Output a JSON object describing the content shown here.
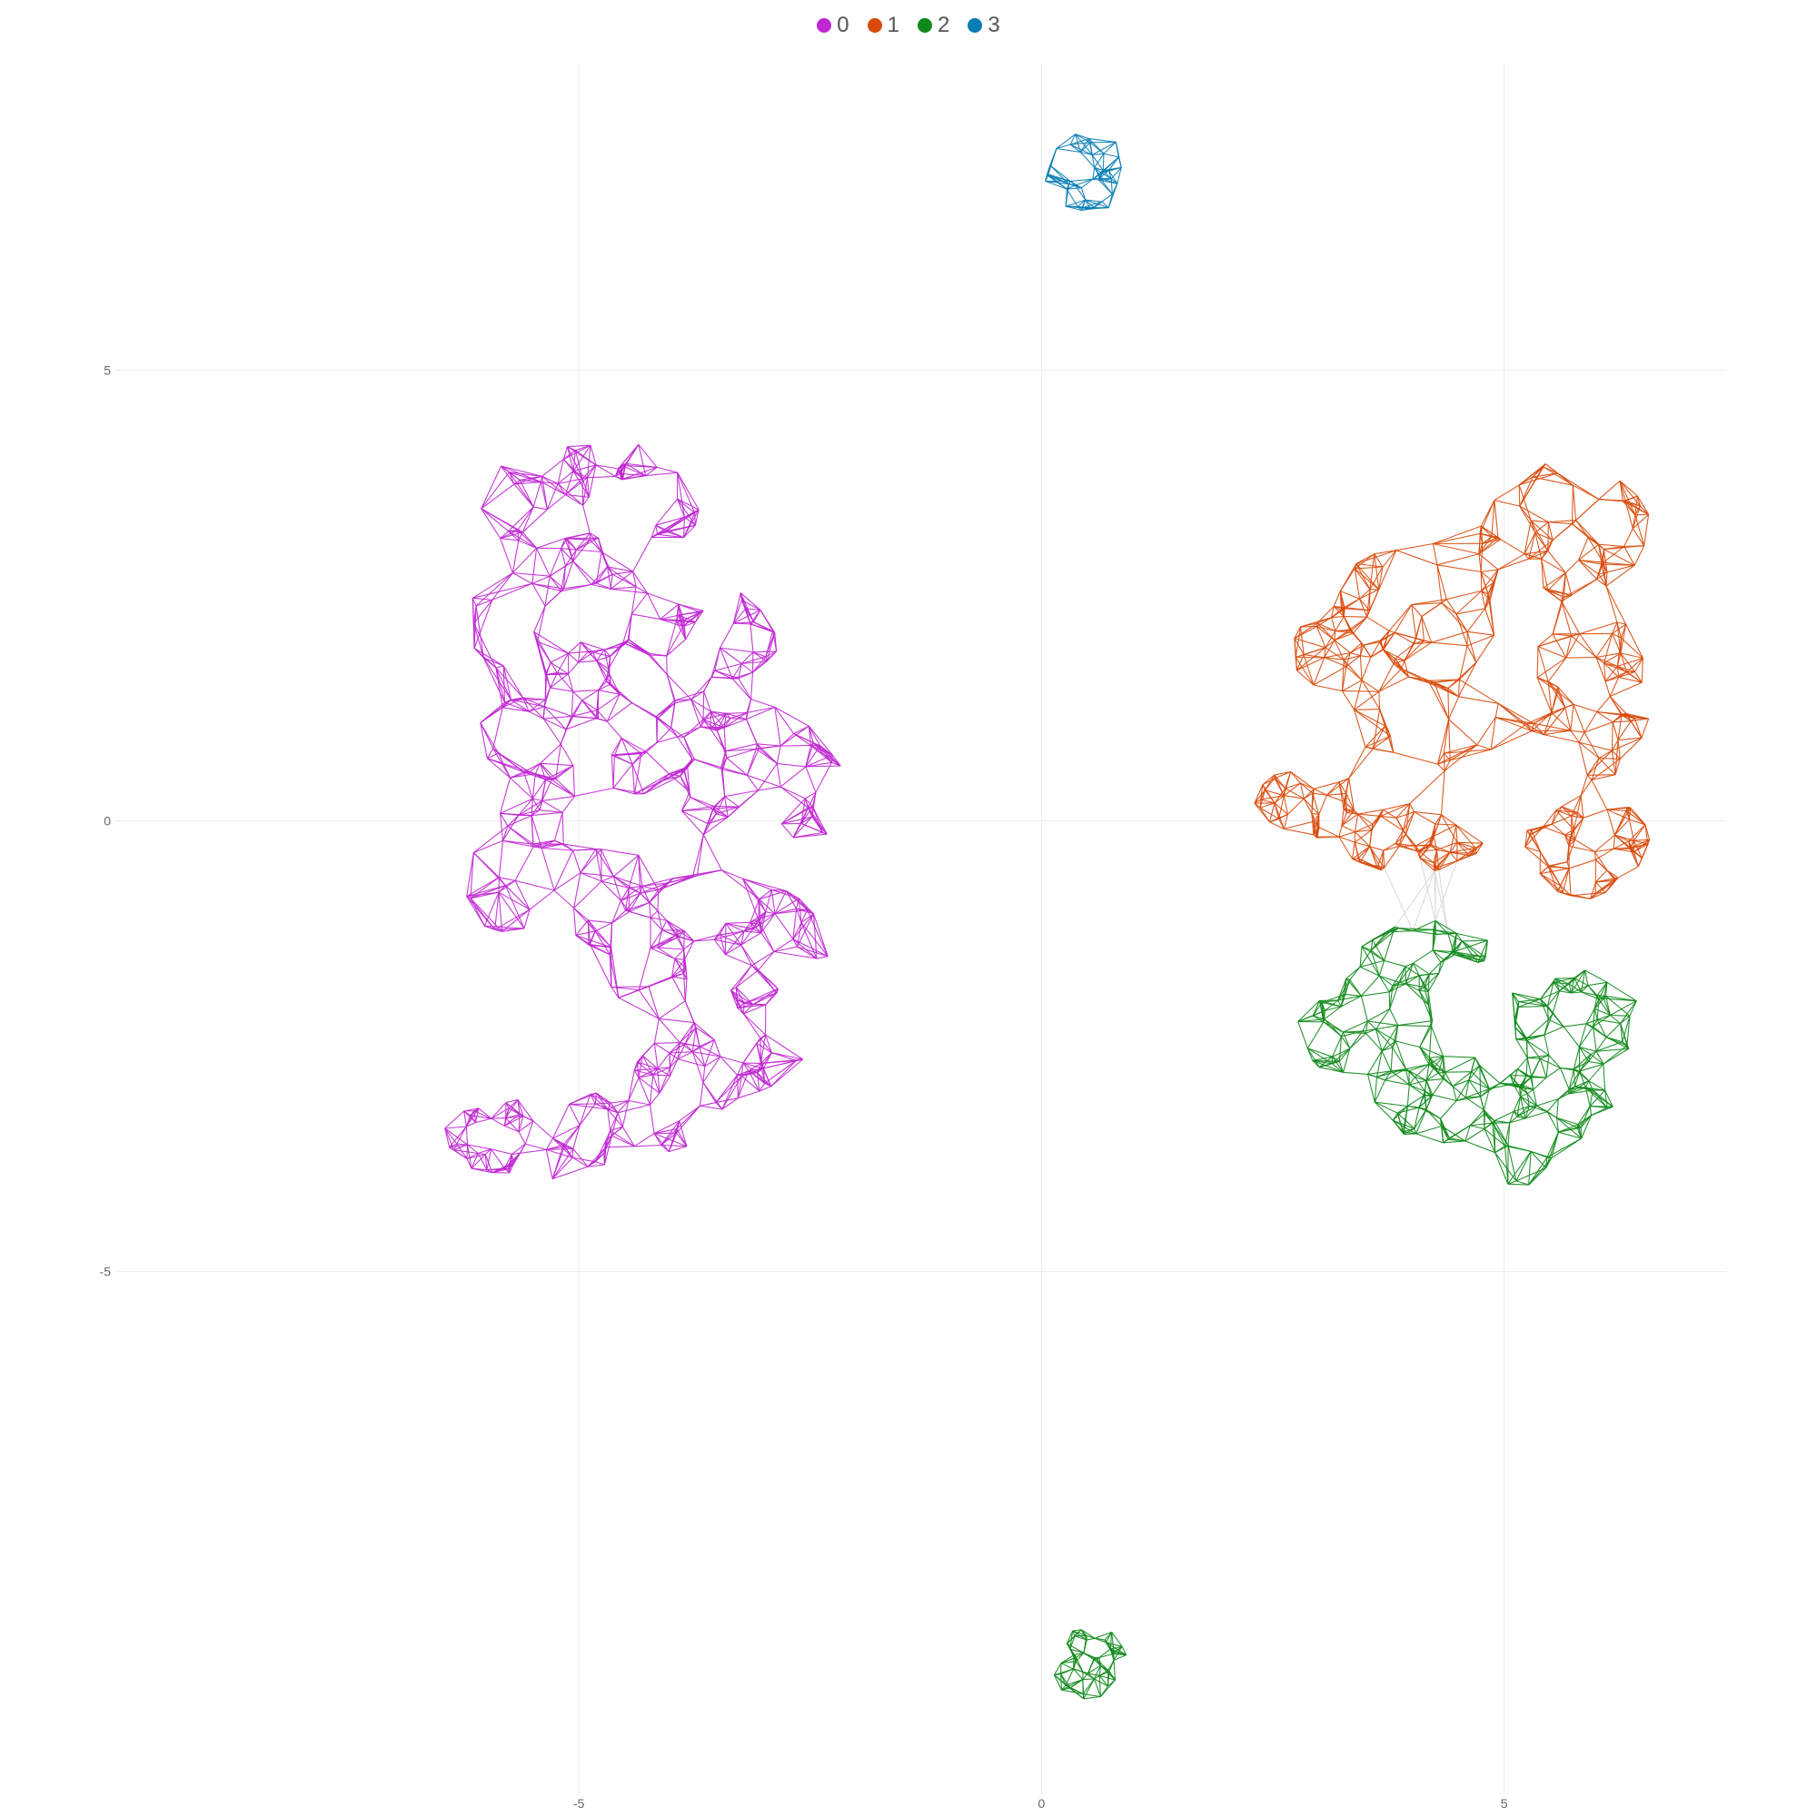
{
  "chart_data": {
    "type": "network",
    "title": "",
    "xlabel": "",
    "ylabel": "",
    "xlim": [
      -10,
      7.4
    ],
    "ylim": [
      -10.8,
      8.4
    ],
    "x_ticks": [
      -5,
      0,
      5
    ],
    "y_ticks": [
      -5,
      0,
      5
    ],
    "grid": true,
    "legend_position": "top-center",
    "bridge_color": "#d9d9d9",
    "series": [
      {
        "label": "0",
        "color": "#c026d3",
        "regions": [
          {
            "cx": -4.9,
            "cy": 3.4,
            "rx": 1.2,
            "ry": 0.9,
            "n": 60,
            "k": 6
          },
          {
            "cx": -5.2,
            "cy": 2.2,
            "rx": 1.0,
            "ry": 1.1,
            "n": 40,
            "k": 5
          },
          {
            "cx": -3.7,
            "cy": 1.9,
            "rx": 0.9,
            "ry": 0.8,
            "n": 40,
            "k": 5
          },
          {
            "cx": -4.9,
            "cy": 0.9,
            "rx": 1.2,
            "ry": 0.8,
            "n": 60,
            "k": 5
          },
          {
            "cx": -3.0,
            "cy": 0.5,
            "rx": 1.0,
            "ry": 0.9,
            "n": 55,
            "k": 5
          },
          {
            "cx": -5.3,
            "cy": -0.6,
            "rx": 1.1,
            "ry": 0.9,
            "n": 40,
            "k": 5
          },
          {
            "cx": -3.6,
            "cy": -1.4,
            "rx": 1.3,
            "ry": 0.9,
            "n": 80,
            "k": 6
          },
          {
            "cx": -3.5,
            "cy": -2.8,
            "rx": 1.0,
            "ry": 0.5,
            "n": 40,
            "k": 5
          },
          {
            "cx": -5.2,
            "cy": -3.5,
            "rx": 1.4,
            "ry": 0.5,
            "n": 70,
            "k": 6
          }
        ]
      },
      {
        "label": "1",
        "color": "#d94a0b",
        "regions": [
          {
            "cx": 5.6,
            "cy": 3.2,
            "rx": 1.0,
            "ry": 0.9,
            "n": 55,
            "k": 6
          },
          {
            "cx": 4.1,
            "cy": 2.3,
            "rx": 1.0,
            "ry": 0.8,
            "n": 45,
            "k": 5
          },
          {
            "cx": 3.2,
            "cy": 1.9,
            "rx": 0.5,
            "ry": 0.5,
            "n": 30,
            "k": 6
          },
          {
            "cx": 5.9,
            "cy": 1.4,
            "rx": 0.7,
            "ry": 1.0,
            "n": 50,
            "k": 5
          },
          {
            "cx": 4.2,
            "cy": 1.1,
            "rx": 0.9,
            "ry": 0.6,
            "n": 20,
            "k": 5
          },
          {
            "cx": 2.9,
            "cy": 0.2,
            "rx": 0.6,
            "ry": 0.4,
            "n": 35,
            "k": 6
          },
          {
            "cx": 4.0,
            "cy": -0.2,
            "rx": 0.8,
            "ry": 0.4,
            "n": 45,
            "k": 6
          },
          {
            "cx": 5.9,
            "cy": -0.3,
            "rx": 0.7,
            "ry": 0.6,
            "n": 55,
            "k": 6
          }
        ]
      },
      {
        "label": "2",
        "color": "#0f8a1a",
        "regions": [
          {
            "cx": 4.2,
            "cy": -1.5,
            "rx": 0.8,
            "ry": 0.4,
            "n": 35,
            "k": 5
          },
          {
            "cx": 3.5,
            "cy": -2.3,
            "rx": 0.8,
            "ry": 0.6,
            "n": 45,
            "k": 5
          },
          {
            "cx": 5.7,
            "cy": -2.2,
            "rx": 0.8,
            "ry": 0.6,
            "n": 50,
            "k": 5
          },
          {
            "cx": 4.5,
            "cy": -3.1,
            "rx": 0.9,
            "ry": 0.5,
            "n": 50,
            "k": 5
          },
          {
            "cx": 5.5,
            "cy": -3.1,
            "rx": 0.7,
            "ry": 0.5,
            "n": 35,
            "k": 5
          },
          {
            "cx": 5.2,
            "cy": -3.8,
            "rx": 0.4,
            "ry": 0.3,
            "n": 10,
            "k": 3
          },
          {
            "cx": 0.55,
            "cy": -9.35,
            "rx": 0.45,
            "ry": 0.45,
            "n": 45,
            "k": 10
          }
        ]
      },
      {
        "label": "3",
        "color": "#0a7db5",
        "regions": [
          {
            "cx": 0.5,
            "cy": 7.2,
            "rx": 0.5,
            "ry": 0.45,
            "n": 40,
            "k": 12
          }
        ]
      }
    ]
  }
}
